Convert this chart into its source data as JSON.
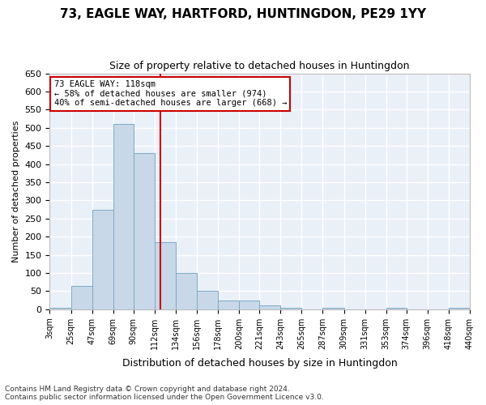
{
  "title_line1": "73, EAGLE WAY, HARTFORD, HUNTINGDON, PE29 1YY",
  "title_line2": "Size of property relative to detached houses in Huntingdon",
  "xlabel": "Distribution of detached houses by size in Huntingdon",
  "ylabel": "Number of detached properties",
  "bar_color": "#c8d8e8",
  "bar_edge_color": "#7aaac8",
  "background_color": "#eaf0f8",
  "grid_color": "#ffffff",
  "annotation_box_color": "#cc0000",
  "annotation_text": "73 EAGLE WAY: 118sqm\n← 58% of detached houses are smaller (974)\n40% of semi-detached houses are larger (668) →",
  "property_size": 118,
  "vline_color": "#cc0000",
  "tick_labels": [
    "3sqm",
    "25sqm",
    "47sqm",
    "69sqm",
    "90sqm",
    "112sqm",
    "134sqm",
    "156sqm",
    "178sqm",
    "200sqm",
    "221sqm",
    "243sqm",
    "265sqm",
    "287sqm",
    "309sqm",
    "331sqm",
    "353sqm",
    "374sqm",
    "396sqm",
    "418sqm",
    "440sqm"
  ],
  "bin_edges": [
    3,
    25,
    47,
    69,
    90,
    112,
    134,
    156,
    178,
    200,
    221,
    243,
    265,
    287,
    309,
    331,
    353,
    374,
    396,
    418,
    440
  ],
  "values": [
    5,
    65,
    275,
    510,
    430,
    185,
    100,
    50,
    25,
    25,
    10,
    5,
    0,
    5,
    0,
    0,
    5,
    0,
    0,
    5
  ],
  "ylim": [
    0,
    650
  ],
  "yticks": [
    0,
    50,
    100,
    150,
    200,
    250,
    300,
    350,
    400,
    450,
    500,
    550,
    600,
    650
  ],
  "footer_line1": "Contains HM Land Registry data © Crown copyright and database right 2024.",
  "footer_line2": "Contains public sector information licensed under the Open Government Licence v3.0."
}
